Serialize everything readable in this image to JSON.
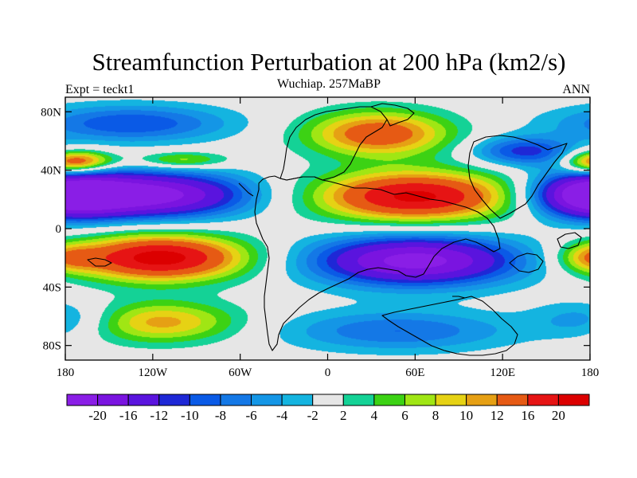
{
  "chart_data": {
    "type": "heatmap",
    "title": "Streamfunction Perturbation at 200 hPa (km2/s)",
    "left_label": "Expt = teckt1",
    "center_label": "Wuchiap. 257MaBP",
    "right_label": "ANN",
    "x_ticks": [
      "180",
      "120W",
      "60W",
      "0",
      "60E",
      "120E",
      "180"
    ],
    "x_tick_values": [
      -180,
      -120,
      -60,
      0,
      60,
      120,
      180
    ],
    "y_ticks": [
      "80N",
      "40N",
      "0",
      "40S",
      "80S"
    ],
    "y_tick_values": [
      80,
      40,
      0,
      -40,
      -80
    ],
    "xlim": [
      -180,
      180
    ],
    "ylim": [
      -90,
      90
    ],
    "colorbar": {
      "labels": [
        "-20",
        "-16",
        "-12",
        "-10",
        "-8",
        "-6",
        "-4",
        "-2",
        "2",
        "4",
        "6",
        "8",
        "10",
        "12",
        "16",
        "20"
      ],
      "levels": [
        -20,
        -16,
        -12,
        -10,
        -8,
        -6,
        -4,
        -2,
        2,
        4,
        6,
        8,
        10,
        12,
        16,
        20
      ],
      "colors": [
        "#8a1ee6",
        "#7a14e0",
        "#5a14de",
        "#1e28d6",
        "#0a5ae6",
        "#1478e6",
        "#1496e6",
        "#14b4e0",
        "#e6e6e6",
        "#14d296",
        "#3cd214",
        "#a0e614",
        "#e6d214",
        "#e6a014",
        "#e65a14",
        "#e61414",
        "#dc0000"
      ]
    },
    "blobs": [
      {
        "lon": -120,
        "lat": 23,
        "slon": 46,
        "slat": 11,
        "value": -22
      },
      {
        "lon": 180,
        "lat": 23,
        "slon": 28,
        "slat": 11,
        "value": -22
      },
      {
        "lon": -115,
        "lat": -20,
        "slon": 42,
        "slat": 11,
        "value": 22
      },
      {
        "lon": -115,
        "lat": -64,
        "slon": 38,
        "slat": 10,
        "value": 11
      },
      {
        "lon": -135,
        "lat": 72,
        "slon": 48,
        "slat": 9,
        "value": -10
      },
      {
        "lon": -165,
        "lat": 46,
        "slon": 16,
        "slat": 5,
        "value": 10
      },
      {
        "lon": -100,
        "lat": 47,
        "slon": 22,
        "slat": 4,
        "value": 8
      },
      {
        "lon": 35,
        "lat": 65,
        "slon": 35,
        "slat": 11,
        "value": 15
      },
      {
        "lon": 60,
        "lat": 22,
        "slon": 48,
        "slat": 12,
        "value": 21
      },
      {
        "lon": 60,
        "lat": -22,
        "slon": 50,
        "slat": 12,
        "value": -22
      },
      {
        "lon": 48,
        "lat": -70,
        "slon": 56,
        "slat": 10,
        "value": -8
      },
      {
        "lon": 135,
        "lat": 53,
        "slon": 25,
        "slat": 7,
        "value": -11
      },
      {
        "lon": 180,
        "lat": 45,
        "slon": 14,
        "slat": 6,
        "value": 10
      },
      {
        "lon": 180,
        "lat": -20,
        "slon": 15,
        "slat": 7,
        "value": 8
      },
      {
        "lon": 180,
        "lat": -62,
        "slon": 26,
        "slat": 9,
        "value": -6
      }
    ]
  }
}
